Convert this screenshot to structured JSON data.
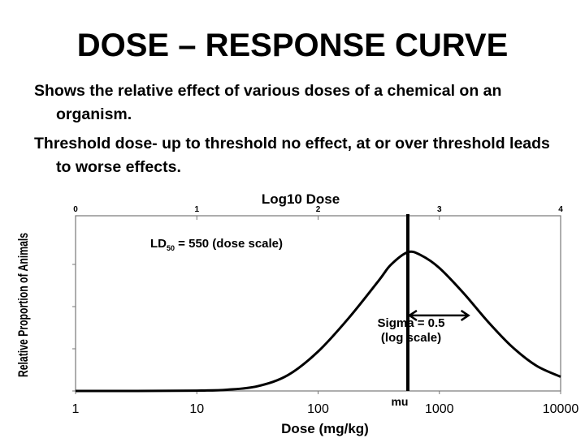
{
  "slide": {
    "title": "DOSE – RESPONSE CURVE",
    "bullets": [
      "Shows the relative effect of various doses of a chemical on an organism.",
      "Threshold dose- up to threshold no effect, at or over threshold leads to worse effects."
    ]
  },
  "chart_data": {
    "type": "line",
    "top_axis": {
      "label": "Log10 Dose",
      "ticks": [
        "0",
        "1",
        "2",
        "3",
        "4"
      ],
      "range": [
        0,
        4
      ]
    },
    "bottom_axis": {
      "label": "Dose (mg/kg)",
      "scale": "log",
      "ticks": [
        "1",
        "10",
        "100",
        "1000",
        "10000"
      ],
      "range": [
        1,
        10000
      ]
    },
    "ylabel": "Relative Proportion of Animals",
    "series": [
      {
        "values": [
          [
            0,
            0.0
          ],
          [
            0.5,
            0.0
          ],
          [
            1.0,
            0.002
          ],
          [
            1.25,
            0.008
          ],
          [
            1.5,
            0.03
          ],
          [
            1.75,
            0.1
          ],
          [
            2.0,
            0.25
          ],
          [
            2.25,
            0.46
          ],
          [
            2.5,
            0.7
          ],
          [
            2.6,
            0.8
          ],
          [
            2.74,
            0.88
          ],
          [
            2.85,
            0.86
          ],
          [
            3.0,
            0.78
          ],
          [
            3.2,
            0.62
          ],
          [
            3.4,
            0.44
          ],
          [
            3.6,
            0.28
          ],
          [
            3.8,
            0.16
          ],
          [
            4.0,
            0.09
          ]
        ]
      }
    ],
    "ylim": [
      0,
      1
    ],
    "grid": false,
    "legend": "none",
    "median_line": {
      "x": 2.74,
      "label": "mu"
    },
    "annotations": {
      "ld50": {
        "prefix": "LD",
        "subscript": "50",
        "suffix": " = 550 (dose scale)"
      },
      "sigma": {
        "line1": "Sigma = 0.5",
        "line2": "(log scale)",
        "x_start": 2.74,
        "x_end": 3.24,
        "y": 0.52
      }
    }
  }
}
